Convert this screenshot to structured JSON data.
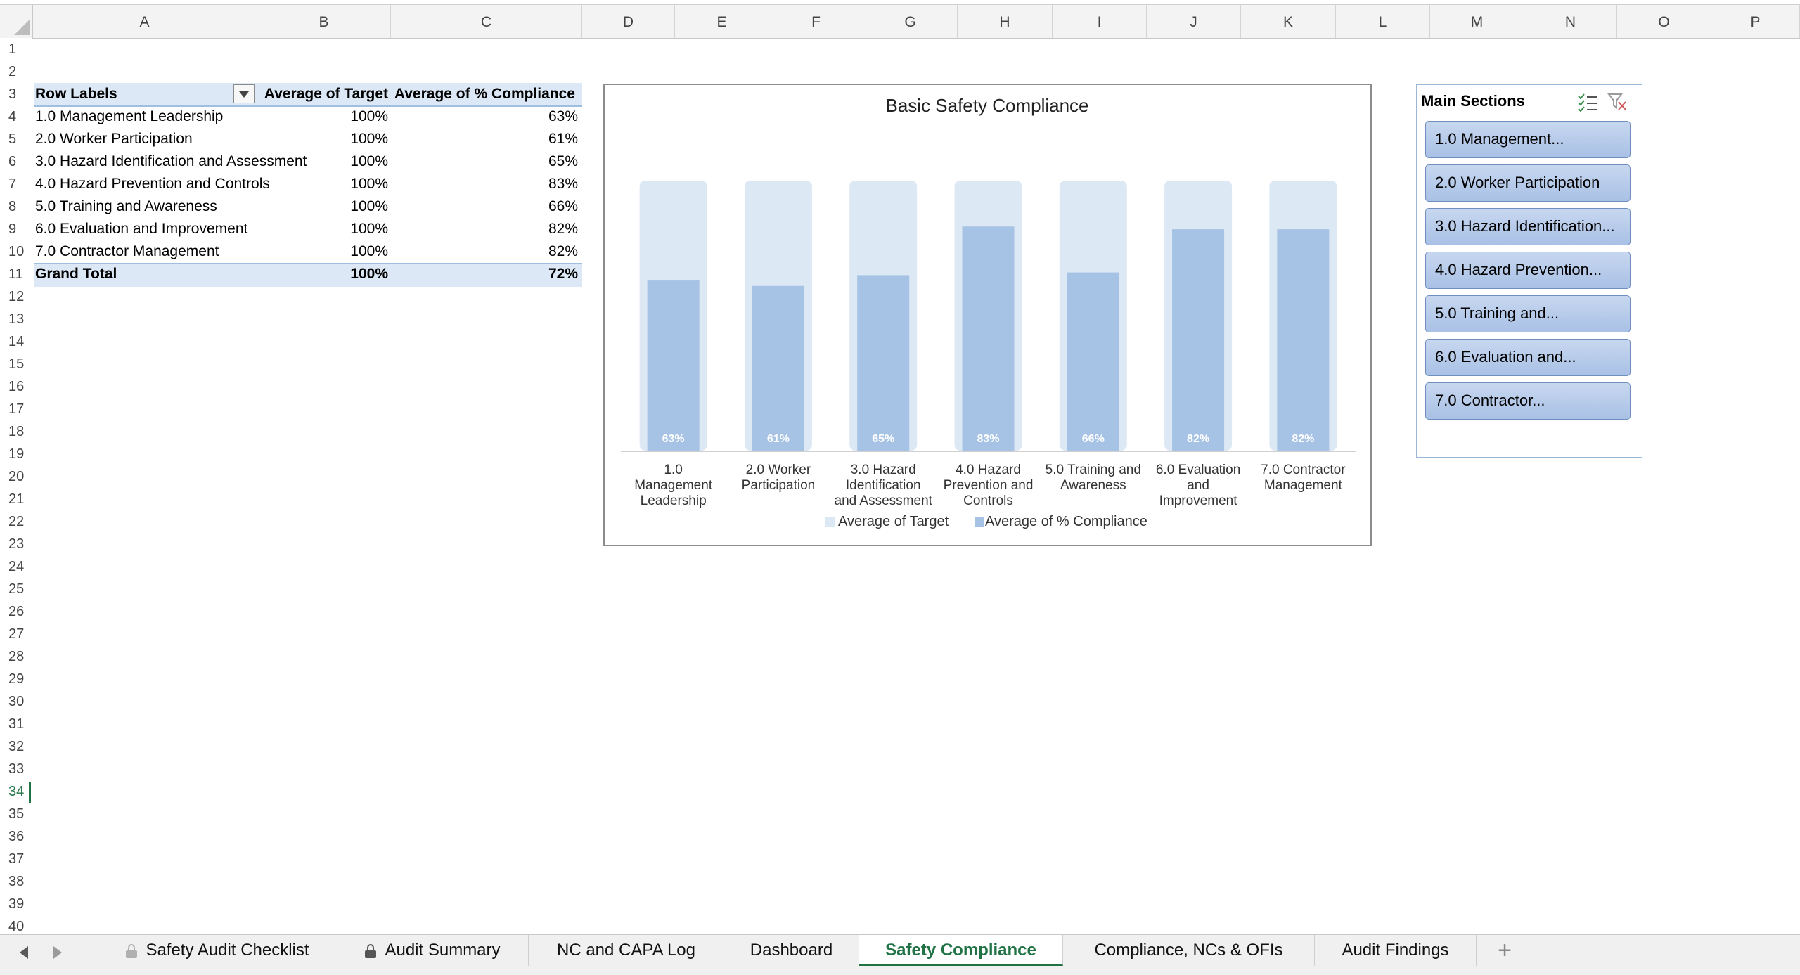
{
  "columns": [
    "A",
    "B",
    "C",
    "D",
    "E",
    "F",
    "G",
    "H",
    "I",
    "J",
    "K",
    "L",
    "M",
    "N",
    "O",
    "P"
  ],
  "rows": [
    "1",
    "2",
    "3",
    "4",
    "5",
    "6",
    "7",
    "8",
    "9",
    "10",
    "11",
    "12",
    "13",
    "14",
    "15",
    "16",
    "17",
    "18",
    "19",
    "20",
    "21",
    "22",
    "23",
    "24",
    "25",
    "26",
    "27",
    "28",
    "29",
    "30",
    "31",
    "32",
    "33",
    "34",
    "35",
    "36",
    "37",
    "38",
    "39",
    "40"
  ],
  "active_row": "34",
  "pivot": {
    "header": {
      "row_labels": "Row Labels",
      "avg_target": "Average of Target",
      "avg_compliance": "Average of % Compliance"
    },
    "rows": [
      {
        "label": "1.0 Management Leadership",
        "target": "100%",
        "compliance": "63%"
      },
      {
        "label": "2.0 Worker Participation",
        "target": "100%",
        "compliance": "61%"
      },
      {
        "label": "3.0 Hazard Identification and Assessment",
        "target": "100%",
        "compliance": "65%"
      },
      {
        "label": "4.0 Hazard Prevention and Controls",
        "target": "100%",
        "compliance": "83%"
      },
      {
        "label": "5.0 Training and Awareness",
        "target": "100%",
        "compliance": "66%"
      },
      {
        "label": "6.0 Evaluation and Improvement",
        "target": "100%",
        "compliance": "82%"
      },
      {
        "label": "7.0 Contractor Management",
        "target": "100%",
        "compliance": "82%"
      }
    ],
    "total": {
      "label": "Grand Total",
      "target": "100%",
      "compliance": "72%"
    }
  },
  "chart_data": {
    "type": "bar",
    "title": "Basic Safety Compliance",
    "categories": [
      [
        "1.0",
        "Management",
        "Leadership"
      ],
      [
        "2.0 Worker",
        "Participation"
      ],
      [
        "3.0 Hazard",
        "Identification",
        "and Assessment"
      ],
      [
        "4.0 Hazard",
        "Prevention and",
        "Controls"
      ],
      [
        "5.0 Training and",
        "Awareness"
      ],
      [
        "6.0 Evaluation",
        "and",
        "Improvement"
      ],
      [
        "7.0 Contractor",
        "Management"
      ]
    ],
    "series": [
      {
        "name": "Average of Target",
        "values": [
          100,
          100,
          100,
          100,
          100,
          100,
          100
        ],
        "color": "#dde8f5"
      },
      {
        "name": "Average of % Compliance",
        "values": [
          63,
          61,
          65,
          83,
          66,
          82,
          82
        ],
        "color": "#a6c2e4"
      }
    ],
    "data_labels": [
      "63%",
      "61%",
      "65%",
      "83%",
      "66%",
      "82%",
      "82%"
    ],
    "ylim": [
      0,
      100
    ],
    "legend": "bottom",
    "grid": false
  },
  "slicer": {
    "title": "Main Sections",
    "items": [
      "1.0 Management...",
      "2.0 Worker Participation",
      "3.0 Hazard Identification...",
      "4.0 Hazard Prevention...",
      "5.0 Training and...",
      "6.0 Evaluation and...",
      "7.0 Contractor..."
    ]
  },
  "tabs": [
    {
      "label": "Safety Audit Checklist",
      "locked": true,
      "active": false
    },
    {
      "label": "Audit Summary",
      "locked": true,
      "active": false
    },
    {
      "label": "NC and CAPA Log",
      "locked": false,
      "active": false
    },
    {
      "label": "Dashboard",
      "locked": false,
      "active": false
    },
    {
      "label": "Safety Compliance",
      "locked": false,
      "active": true
    },
    {
      "label": "Compliance, NCs & OFIs",
      "locked": false,
      "active": false
    },
    {
      "label": "Audit Findings",
      "locked": false,
      "active": false
    }
  ],
  "add_tab_label": "+",
  "colors": {
    "excel_green": "#217346",
    "pivot_band": "#dce8f5",
    "target_bar": "#dde8f5",
    "compliance_bar": "#a6c2e4"
  }
}
